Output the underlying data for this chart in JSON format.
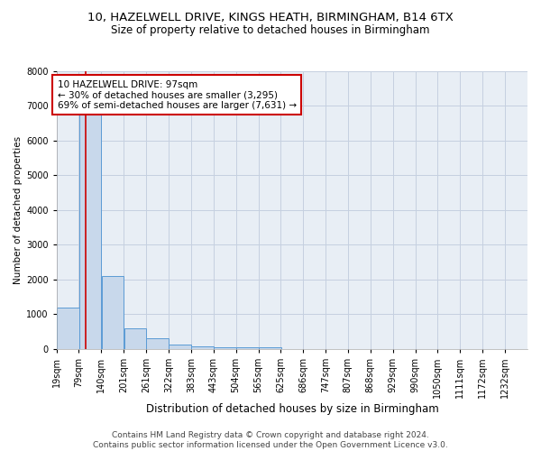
{
  "title1": "10, HAZELWELL DRIVE, KINGS HEATH, BIRMINGHAM, B14 6TX",
  "title2": "Size of property relative to detached houses in Birmingham",
  "xlabel": "Distribution of detached houses by size in Birmingham",
  "ylabel": "Number of detached properties",
  "property_size": 97,
  "annotation_line1": "10 HAZELWELL DRIVE: 97sqm",
  "annotation_line2": "← 30% of detached houses are smaller (3,295)",
  "annotation_line3": "69% of semi-detached houses are larger (7,631) →",
  "footer1": "Contains HM Land Registry data © Crown copyright and database right 2024.",
  "footer2": "Contains public sector information licensed under the Open Government Licence v3.0.",
  "bin_labels": [
    "19sqm",
    "79sqm",
    "140sqm",
    "201sqm",
    "261sqm",
    "322sqm",
    "383sqm",
    "443sqm",
    "504sqm",
    "565sqm",
    "625sqm",
    "686sqm",
    "747sqm",
    "807sqm",
    "868sqm",
    "929sqm",
    "990sqm",
    "1050sqm",
    "1111sqm",
    "1172sqm",
    "1232sqm"
  ],
  "bin_left_edges": [
    19,
    79,
    140,
    201,
    261,
    322,
    383,
    443,
    504,
    565,
    625,
    686,
    747,
    807,
    868,
    929,
    990,
    1050,
    1111,
    1172,
    1232
  ],
  "bin_width": 61,
  "bar_heights": [
    1200,
    7000,
    2100,
    600,
    300,
    130,
    80,
    50,
    40,
    50,
    0,
    0,
    0,
    0,
    0,
    0,
    0,
    0,
    0,
    0,
    0
  ],
  "bar_color": "#c8d8eb",
  "bar_edge_color": "#5b9bd5",
  "red_line_color": "#cc0000",
  "annotation_box_color": "#cc0000",
  "ylim": [
    0,
    8000
  ],
  "yticks": [
    0,
    1000,
    2000,
    3000,
    4000,
    5000,
    6000,
    7000,
    8000
  ],
  "grid_color": "#c5d0e0",
  "bg_color": "#e8eef5",
  "title1_fontsize": 9.5,
  "title2_fontsize": 8.5,
  "xlabel_fontsize": 8.5,
  "ylabel_fontsize": 7.5,
  "tick_fontsize": 7,
  "annotation_fontsize": 7.5,
  "footer_fontsize": 6.5
}
